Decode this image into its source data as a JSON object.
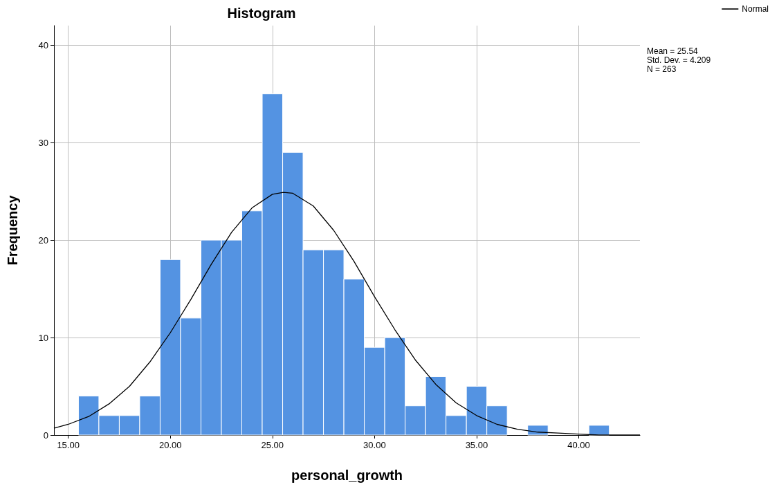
{
  "chart_data": {
    "type": "histogram",
    "title": "Histogram",
    "xlabel": "personal_growth",
    "ylabel": "Frequency",
    "bins": [
      15.5,
      16.5,
      17.5,
      18.5,
      19.5,
      20.5,
      21.5,
      22.5,
      23.5,
      24.5,
      25.5,
      26.5,
      27.5,
      28.5,
      29.5,
      30.5,
      31.5,
      32.5,
      33.5,
      34.5,
      35.5,
      36.5,
      37.5,
      38.5,
      39.5,
      40.5,
      41.5
    ],
    "series": [
      {
        "color": "#5493e2",
        "values": [
          4,
          2,
          2,
          4,
          18,
          12,
          20,
          20,
          23,
          35,
          29,
          19,
          19,
          16,
          9,
          10,
          3,
          6,
          2,
          5,
          3,
          0,
          1,
          0,
          0,
          1
        ]
      },
      {
        "type": "line",
        "name": "Normal",
        "color": "#000000",
        "marker": "none",
        "line_style": "solid",
        "x": [
          14.3,
          15,
          16,
          17,
          18,
          19,
          20,
          21,
          22,
          23,
          24,
          25,
          25.54,
          26,
          27,
          28,
          29,
          30,
          31,
          32,
          33,
          34,
          35,
          36,
          37,
          38,
          39,
          40,
          41,
          42,
          43
        ],
        "values": [
          0.7,
          1.1,
          1.9,
          3.2,
          5.0,
          7.5,
          10.5,
          13.9,
          17.5,
          20.8,
          23.3,
          24.7,
          24.9,
          24.8,
          23.5,
          21.0,
          17.8,
          14.2,
          10.8,
          7.7,
          5.2,
          3.3,
          2.0,
          1.1,
          0.6,
          0.3,
          0.2,
          0.1,
          0.0,
          0.0,
          0.0
        ]
      }
    ],
    "xlim": [
      14.3,
      43
    ],
    "xticks": [
      {
        "value": 15,
        "label": "15.00"
      },
      {
        "value": 20,
        "label": "20.00"
      },
      {
        "value": 25,
        "label": "25.00"
      },
      {
        "value": 30,
        "label": "30.00"
      },
      {
        "value": 35,
        "label": "35.00"
      },
      {
        "value": 40,
        "label": "40.00"
      }
    ],
    "ylim": [
      0,
      42
    ],
    "yticks": [
      0,
      10,
      20,
      30,
      40
    ],
    "grid": true,
    "legend": "top right",
    "annotations": [
      "Mean = 25.54",
      "Std. Dev. = 4.209",
      "N = 263"
    ]
  }
}
